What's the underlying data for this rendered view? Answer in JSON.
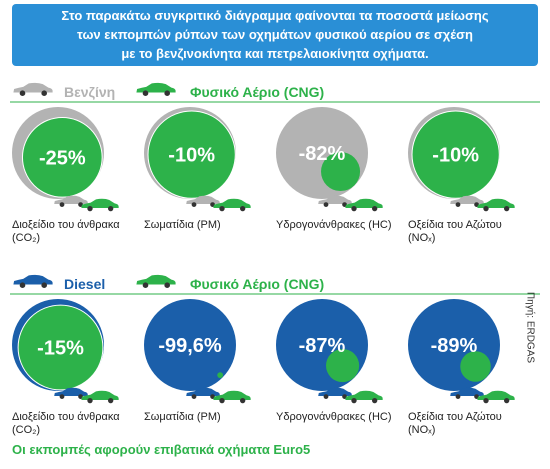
{
  "header": {
    "lines": [
      "Στο παρακάτω συγκριτικό διάγραμμα φαίνονται τα ποσοστά μείωσης",
      "των εκπομπών ρύπων των οχημάτων φυσικού αερίου σε σχέση",
      "με το βενζινοκίνητα και πετρελαιοκίνητα οχήματα."
    ]
  },
  "groups": [
    {
      "reference": "Βενζίνη",
      "reference_color": "#b3b3b3",
      "comparison": "Φυσικό Αέριο (CNG)",
      "comparison_color": "#2db24a",
      "items": [
        {
          "label": "Διοξείδιο του άνθρακα (CO₂)",
          "value": -25,
          "value_label": "-25%"
        },
        {
          "label": "Σωματίδια (PM)",
          "value": -10,
          "value_label": "-10%"
        },
        {
          "label": "Υδρογονάνθρακες (HC)",
          "value": -82,
          "value_label": "-82%"
        },
        {
          "label": "Οξείδια του Αζώτου (NOₓ)",
          "value": -10,
          "value_label": "-10%"
        }
      ]
    },
    {
      "reference": "Diesel",
      "reference_color": "#1b5faa",
      "comparison": "Φυσικό Αέριο (CNG)",
      "comparison_color": "#2db24a",
      "items": [
        {
          "label": "Διοξείδιο του άνθρακα (CO₂)",
          "value": -15,
          "value_label": "-15%"
        },
        {
          "label": "Σωματίδια (PM)",
          "value": -99.6,
          "value_label": "-99,6%"
        },
        {
          "label": "Υδρογονάνθρακες (HC)",
          "value": -87,
          "value_label": "-87%"
        },
        {
          "label": "Οξείδια του Αζώτου (NOₓ)",
          "value": -89,
          "value_label": "-89%"
        }
      ]
    }
  ],
  "source": "Πηγή: ERDGAS",
  "footer": "Οι εκπομπές αφορούν επιβατικά οχήματα Euro5"
}
